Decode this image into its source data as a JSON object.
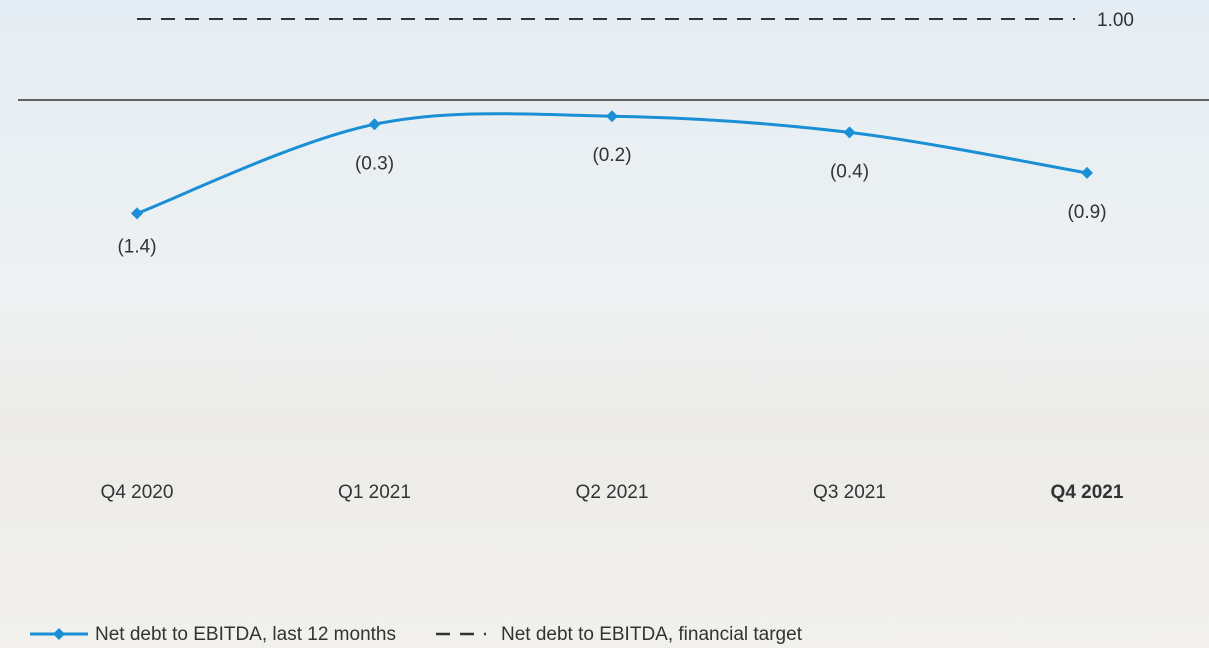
{
  "chart_data": {
    "type": "line",
    "categories": [
      "Q4 2020",
      "Q1 2021",
      "Q2 2021",
      "Q3 2021",
      "Q4 2021"
    ],
    "highlight_category_index": 4,
    "series": [
      {
        "name": "Net debt to EBITDA, last 12 months",
        "color": "#1a8fd6",
        "style": "solid-diamond",
        "values": [
          -1.4,
          -0.3,
          -0.2,
          -0.4,
          -0.9
        ],
        "value_labels": [
          "(1.4)",
          "(0.3)",
          "(0.2)",
          "(0.4)",
          "(0.9)"
        ]
      },
      {
        "name": "Net debt to EBITDA, financial target",
        "color": "#333333",
        "style": "dashed",
        "values": [
          1,
          1,
          1,
          1,
          1
        ],
        "value_labels": [
          null,
          null,
          null,
          null,
          "1.00"
        ]
      }
    ],
    "ylim": [
      -4,
      1
    ],
    "grid": false
  }
}
